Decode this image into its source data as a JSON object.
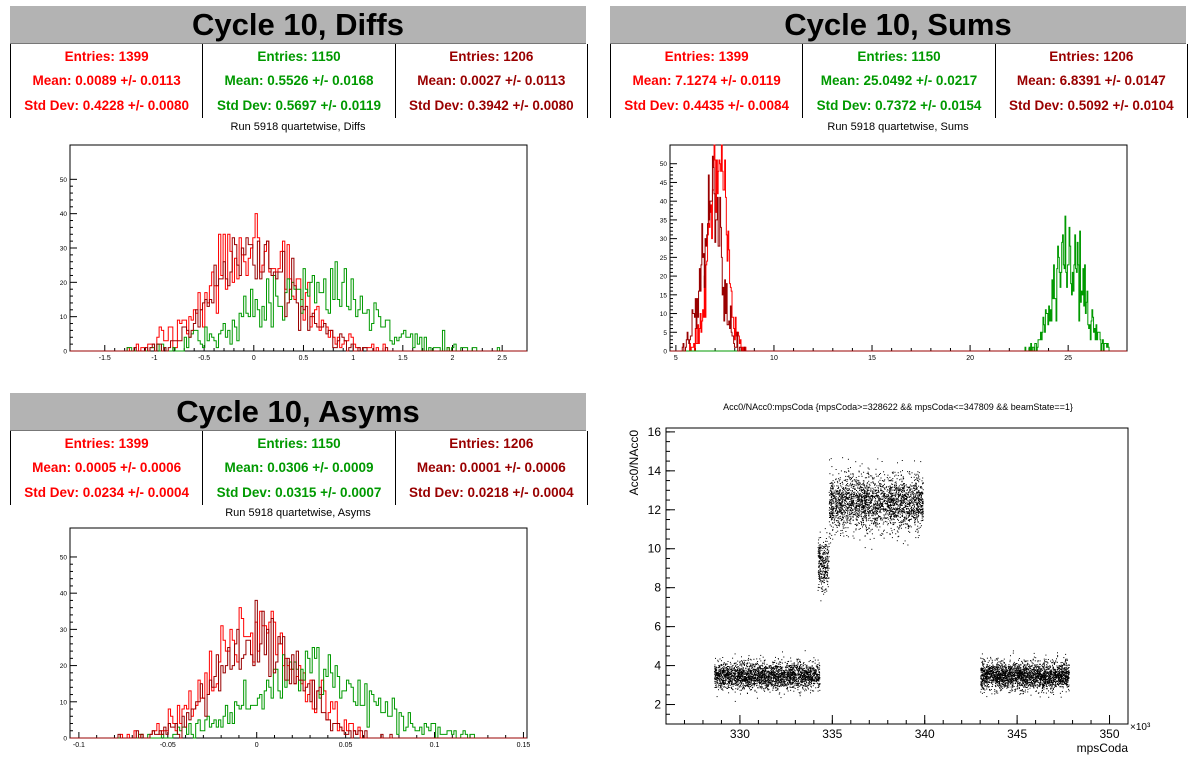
{
  "panels": {
    "diffs": {
      "title": "Cycle 10, Diffs",
      "subtitle": "Run 5918 quartetwise, Diffs",
      "stats": [
        {
          "entries": "Entries: 1399",
          "mean": "Mean: 0.0089 +/- 0.0113",
          "std": "Std Dev: 0.4228 +/- 0.0080",
          "color": "#ff0000"
        },
        {
          "entries": "Entries: 1150",
          "mean": "Mean: 0.5526 +/- 0.0168",
          "std": "Std Dev: 0.5697 +/- 0.0119",
          "color": "#009900"
        },
        {
          "entries": "Entries: 1206",
          "mean": "Mean: 0.0027 +/- 0.0113",
          "std": "Std Dev: 0.3942 +/- 0.0080",
          "color": "#990000"
        }
      ]
    },
    "sums": {
      "title": "Cycle 10, Sums",
      "subtitle": "Run 5918 quartetwise, Sums",
      "stats": [
        {
          "entries": "Entries: 1399",
          "mean": "Mean: 7.1274 +/- 0.0119",
          "std": "Std Dev: 0.4435 +/- 0.0084",
          "color": "#ff0000"
        },
        {
          "entries": "Entries: 1150",
          "mean": "Mean: 25.0492 +/- 0.0217",
          "std": "Std Dev: 0.7372 +/- 0.0154",
          "color": "#009900"
        },
        {
          "entries": "Entries: 1206",
          "mean": "Mean: 6.8391 +/- 0.0147",
          "std": "Std Dev: 0.5092 +/- 0.0104",
          "color": "#990000"
        }
      ]
    },
    "asyms": {
      "title": "Cycle 10, Asyms",
      "subtitle": "Run 5918 quartetwise, Asyms",
      "stats": [
        {
          "entries": "Entries: 1399",
          "mean": "Mean: 0.0005 +/- 0.0006",
          "std": "Std Dev: 0.0234 +/- 0.0004",
          "color": "#ff0000"
        },
        {
          "entries": "Entries: 1150",
          "mean": "Mean: 0.0306 +/- 0.0009",
          "std": "Std Dev: 0.0315 +/- 0.0007",
          "color": "#009900"
        },
        {
          "entries": "Entries: 1206",
          "mean": "Mean: 0.0001 +/- 0.0006",
          "std": "Std Dev: 0.0218 +/- 0.0004",
          "color": "#990000"
        }
      ]
    },
    "scatter": {
      "title": "Acc0/NAcc0:mpsCoda {mpsCoda>=328622 && mpsCoda<=347809 && beamState==1}"
    }
  },
  "chart_data": [
    {
      "id": "diffs",
      "type": "histogram",
      "title": "Run 5918 quartetwise, Diffs",
      "xlim": [
        -1.85,
        2.75
      ],
      "ylim": [
        0,
        60
      ],
      "xticks": [
        "-1.5",
        "-1",
        "-0.5",
        "0",
        "0.5",
        "1",
        "1.5",
        "2",
        "2.5"
      ],
      "xtick_values": [
        -1.5,
        -1,
        -0.5,
        0,
        0.5,
        1,
        1.5,
        2,
        2.5
      ],
      "yticks": [
        "0",
        "10",
        "20",
        "30",
        "40",
        "50"
      ],
      "ytick_values": [
        0,
        10,
        20,
        30,
        40,
        50
      ],
      "series": [
        {
          "color": "#ff0000",
          "entries": 1399,
          "mean": 0.0089,
          "std": 0.4228
        },
        {
          "color": "#009900",
          "entries": 1150,
          "mean": 0.5526,
          "std": 0.5697
        },
        {
          "color": "#990000",
          "entries": 1206,
          "mean": 0.0027,
          "std": 0.3942
        }
      ]
    },
    {
      "id": "sums",
      "type": "histogram",
      "title": "Run 5918 quartetwise, Sums",
      "xlim": [
        4.7,
        28.0
      ],
      "ylim": [
        0,
        55
      ],
      "xticks": [
        "5",
        "10",
        "15",
        "20",
        "25"
      ],
      "xtick_values": [
        5,
        10,
        15,
        20,
        25
      ],
      "yticks": [
        "0",
        "5",
        "10",
        "15",
        "20",
        "25",
        "30",
        "35",
        "40",
        "45",
        "50"
      ],
      "ytick_values": [
        0,
        5,
        10,
        15,
        20,
        25,
        30,
        35,
        40,
        45,
        50
      ],
      "series": [
        {
          "color": "#ff0000",
          "entries": 1399,
          "mean": 7.1274,
          "std": 0.4435
        },
        {
          "color": "#009900",
          "entries": 1150,
          "mean": 25.0492,
          "std": 0.7372
        },
        {
          "color": "#990000",
          "entries": 1206,
          "mean": 6.8391,
          "std": 0.5092
        }
      ]
    },
    {
      "id": "asyms",
      "type": "histogram",
      "title": "Run 5918 quartetwise, Asyms",
      "xlim": [
        -0.105,
        0.152
      ],
      "ylim": [
        0,
        58
      ],
      "xticks": [
        "-0.1",
        "-0.05",
        "0",
        "0.05",
        "0.1",
        "0.15"
      ],
      "xtick_values": [
        -0.1,
        -0.05,
        0,
        0.05,
        0.1,
        0.15
      ],
      "yticks": [
        "0",
        "10",
        "20",
        "30",
        "40",
        "50"
      ],
      "ytick_values": [
        0,
        10,
        20,
        30,
        40,
        50
      ],
      "series": [
        {
          "color": "#ff0000",
          "entries": 1399,
          "mean": 0.0005,
          "std": 0.0234
        },
        {
          "color": "#009900",
          "entries": 1150,
          "mean": 0.0306,
          "std": 0.0315
        },
        {
          "color": "#990000",
          "entries": 1206,
          "mean": 0.0001,
          "std": 0.0218
        }
      ]
    },
    {
      "id": "scatter",
      "type": "scatter",
      "title": "Acc0/NAcc0:mpsCoda {mpsCoda>=328622 && mpsCoda<=347809 && beamState==1}",
      "xlabel": "mpsCoda",
      "ylabel": "Acc0/NAcc0",
      "x_multiplier": "×10³",
      "xlim": [
        326.0,
        351.0
      ],
      "ylim": [
        1.0,
        16.2
      ],
      "xticks": [
        "330",
        "335",
        "340",
        "345",
        "350"
      ],
      "xtick_values": [
        330,
        335,
        340,
        345,
        350
      ],
      "yticks": [
        "2",
        "4",
        "6",
        "8",
        "10",
        "12",
        "14",
        "16"
      ],
      "ytick_values": [
        2,
        4,
        6,
        8,
        10,
        12,
        14,
        16
      ],
      "clusters": [
        {
          "x_range": [
            328.6,
            334.3
          ],
          "y_mean": 3.5,
          "y_spread": 0.35
        },
        {
          "x_range": [
            334.2,
            334.8
          ],
          "y_mean": 9.3,
          "y_spread": 0.7
        },
        {
          "x_range": [
            334.8,
            339.9
          ],
          "y_mean": 12.4,
          "y_spread": 0.7
        },
        {
          "x_range": [
            343.0,
            347.8
          ],
          "y_mean": 3.5,
          "y_spread": 0.35
        }
      ]
    }
  ]
}
